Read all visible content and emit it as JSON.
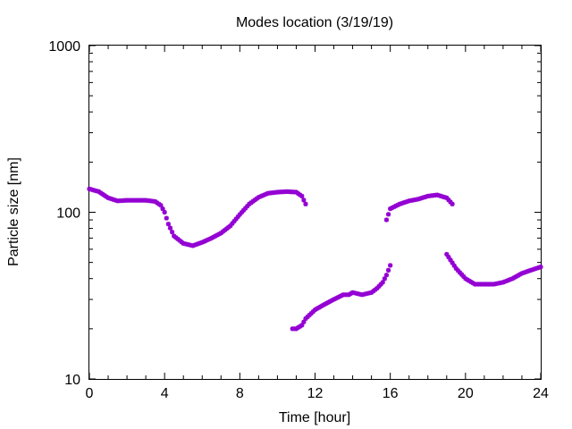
{
  "chart_data": {
    "type": "scatter",
    "title": "Modes location (3/19/19)",
    "xlabel": "Time [hour]",
    "ylabel": "Particle size [nm]",
    "xlim": [
      0,
      24
    ],
    "ylim": [
      10,
      1000
    ],
    "yscale": "log",
    "xticks": [
      0,
      4,
      8,
      12,
      16,
      20,
      24
    ],
    "yticks": [
      10,
      100,
      1000
    ],
    "grid": false,
    "legend": "none",
    "marker": "star",
    "color": "#9400d3",
    "series": [
      {
        "x": [
          0,
          0.5,
          1,
          1.5,
          2,
          2.5,
          3,
          3.5,
          3.8,
          4,
          4.2,
          4.5,
          5,
          5.5,
          6,
          6.5,
          7,
          7.5,
          8,
          8.5,
          9,
          9.5,
          10,
          10.5,
          11,
          11.3,
          11.5
        ],
        "y": [
          138,
          133,
          122,
          117,
          118,
          118,
          118,
          116,
          110,
          100,
          85,
          72,
          65,
          63,
          66,
          70,
          75,
          83,
          97,
          112,
          123,
          130,
          132,
          133,
          132,
          125,
          112
        ]
      },
      {
        "x": [
          10.8,
          11,
          11.3,
          11.5,
          12,
          12.5,
          13,
          13.5,
          13.8,
          14,
          14.5,
          15,
          15.3,
          15.6,
          15.8,
          16
        ],
        "y": [
          20,
          20,
          21,
          23,
          26,
          28,
          30,
          32,
          32,
          33,
          32,
          33,
          35,
          38,
          42,
          48
        ]
      },
      {
        "x": [
          15.8,
          16,
          16.5,
          17,
          17.5,
          18,
          18.5,
          19,
          19.3
        ],
        "y": [
          90,
          105,
          112,
          117,
          120,
          125,
          127,
          122,
          112
        ]
      },
      {
        "x": [
          19,
          19.5,
          20,
          20.5,
          21,
          21.5,
          22,
          22.5,
          23,
          23.5,
          24
        ],
        "y": [
          56,
          46,
          40,
          37,
          37,
          37,
          38,
          40,
          43,
          45,
          47
        ]
      }
    ]
  }
}
